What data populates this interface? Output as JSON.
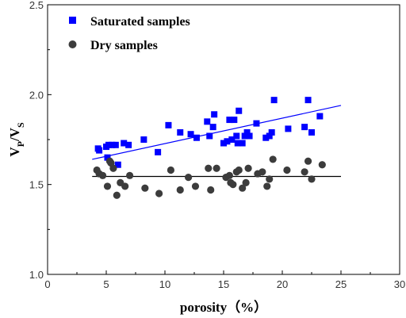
{
  "chart_data": {
    "type": "scatter",
    "title": "",
    "xlabel": "porosity（%）",
    "ylabel": {
      "v1": "V",
      "sub1": "P",
      "slash": "/",
      "v2": "V",
      "sub2": "S"
    },
    "xlim": [
      0,
      30
    ],
    "ylim": [
      1.0,
      2.5
    ],
    "x_ticks": [
      "0",
      "5",
      "10",
      "15",
      "20",
      "25",
      "30"
    ],
    "y_ticks": [
      "1.0",
      "1.5",
      "2.0",
      "2.5"
    ],
    "grid": false,
    "legend_position": "top-left",
    "series": [
      {
        "name": "Saturated samples",
        "marker": "square",
        "color": "#0000ff",
        "points": [
          [
            4.3,
            1.7
          ],
          [
            4.4,
            1.69
          ],
          [
            5.0,
            1.71
          ],
          [
            5.1,
            1.65
          ],
          [
            5.2,
            1.72
          ],
          [
            5.5,
            1.72
          ],
          [
            5.8,
            1.72
          ],
          [
            6.0,
            1.61
          ],
          [
            6.5,
            1.73
          ],
          [
            6.9,
            1.72
          ],
          [
            8.2,
            1.75
          ],
          [
            9.4,
            1.68
          ],
          [
            10.3,
            1.83
          ],
          [
            11.3,
            1.79
          ],
          [
            12.2,
            1.78
          ],
          [
            12.7,
            1.76
          ],
          [
            13.6,
            1.85
          ],
          [
            13.8,
            1.77
          ],
          [
            14.1,
            1.82
          ],
          [
            14.2,
            1.89
          ],
          [
            15.0,
            1.73
          ],
          [
            15.3,
            1.74
          ],
          [
            15.5,
            1.86
          ],
          [
            15.7,
            1.75
          ],
          [
            15.9,
            1.86
          ],
          [
            16.1,
            1.77
          ],
          [
            16.2,
            1.73
          ],
          [
            16.3,
            1.91
          ],
          [
            16.6,
            1.73
          ],
          [
            16.8,
            1.77
          ],
          [
            17.0,
            1.79
          ],
          [
            17.2,
            1.77
          ],
          [
            17.8,
            1.84
          ],
          [
            18.6,
            1.76
          ],
          [
            18.9,
            1.77
          ],
          [
            19.1,
            1.79
          ],
          [
            19.3,
            1.97
          ],
          [
            20.5,
            1.81
          ],
          [
            21.9,
            1.82
          ],
          [
            22.2,
            1.97
          ],
          [
            22.5,
            1.79
          ],
          [
            23.2,
            1.88
          ]
        ],
        "fit": {
          "x": [
            3.8,
            25.0
          ],
          "y": [
            1.64,
            1.94
          ]
        }
      },
      {
        "name": "Dry samples",
        "marker": "circle",
        "color": "#3c3c3c",
        "points": [
          [
            4.2,
            1.58
          ],
          [
            4.4,
            1.56
          ],
          [
            4.7,
            1.55
          ],
          [
            5.1,
            1.49
          ],
          [
            5.3,
            1.63
          ],
          [
            5.4,
            1.62
          ],
          [
            5.6,
            1.59
          ],
          [
            5.9,
            1.44
          ],
          [
            6.2,
            1.51
          ],
          [
            6.6,
            1.49
          ],
          [
            7.0,
            1.55
          ],
          [
            8.3,
            1.48
          ],
          [
            9.5,
            1.45
          ],
          [
            10.5,
            1.58
          ],
          [
            11.3,
            1.47
          ],
          [
            12.0,
            1.54
          ],
          [
            12.6,
            1.49
          ],
          [
            13.7,
            1.59
          ],
          [
            13.9,
            1.47
          ],
          [
            14.4,
            1.59
          ],
          [
            15.2,
            1.54
          ],
          [
            15.5,
            1.55
          ],
          [
            15.6,
            1.51
          ],
          [
            15.8,
            1.5
          ],
          [
            16.1,
            1.57
          ],
          [
            16.3,
            1.58
          ],
          [
            16.6,
            1.48
          ],
          [
            16.9,
            1.51
          ],
          [
            17.1,
            1.59
          ],
          [
            17.9,
            1.56
          ],
          [
            18.3,
            1.57
          ],
          [
            18.7,
            1.49
          ],
          [
            18.9,
            1.53
          ],
          [
            19.2,
            1.64
          ],
          [
            20.4,
            1.58
          ],
          [
            21.9,
            1.57
          ],
          [
            22.2,
            1.63
          ],
          [
            22.5,
            1.53
          ],
          [
            23.4,
            1.61
          ]
        ],
        "fit": {
          "x": [
            3.8,
            25.0
          ],
          "y": [
            1.545,
            1.545
          ]
        }
      }
    ]
  }
}
